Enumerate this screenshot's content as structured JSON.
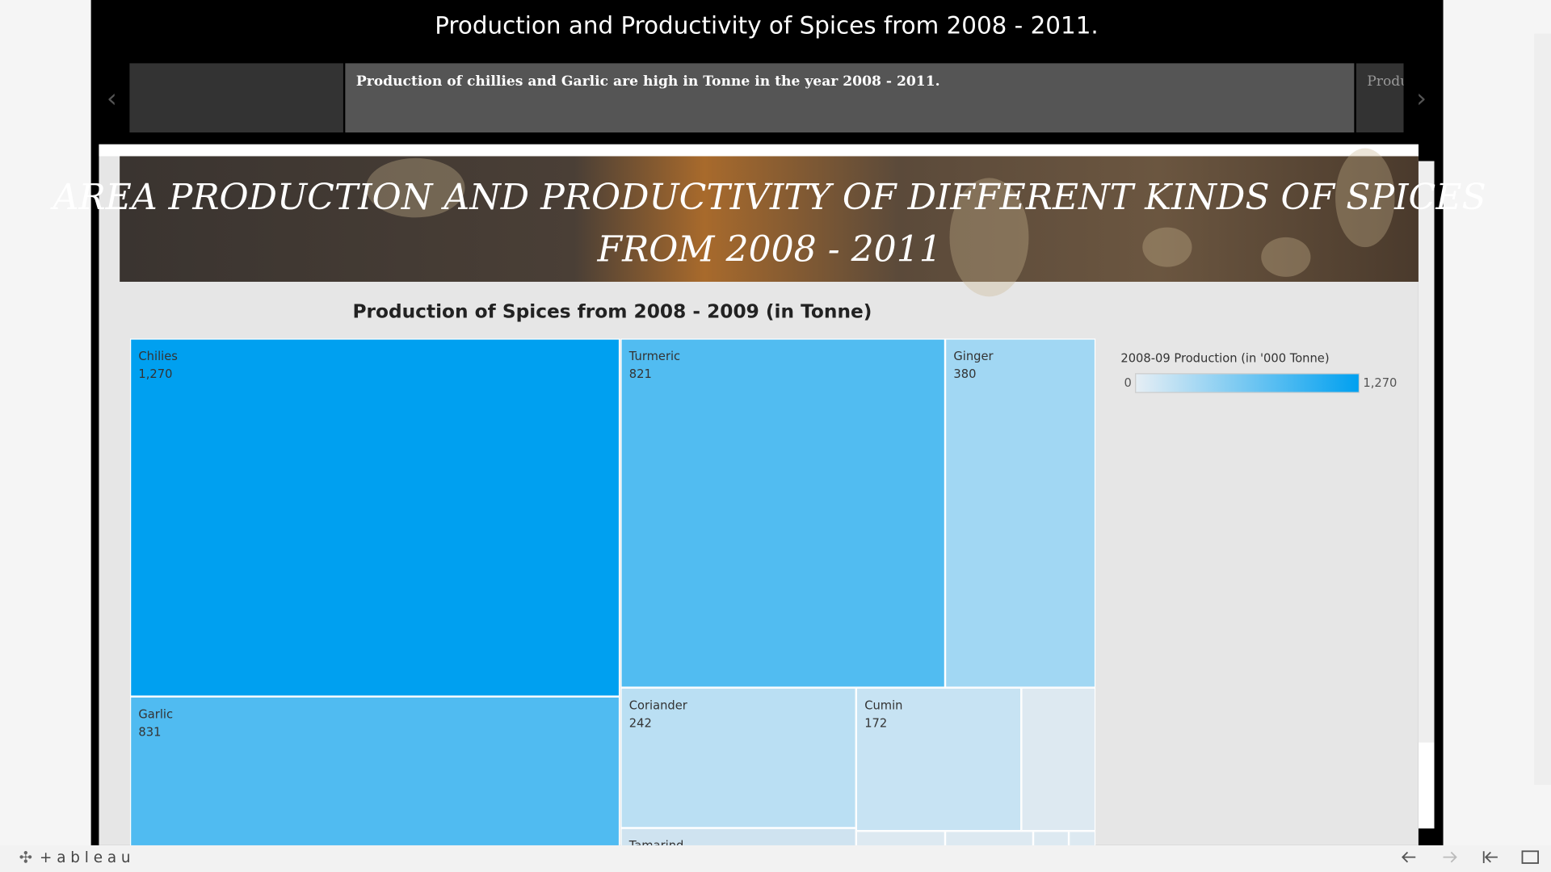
{
  "header": {
    "title": "Production and Productivity of Spices from 2008 - 2011."
  },
  "story": {
    "captions": [
      "Production of chillies and Garlic are high in Tonne in the year  2008 - 2011.",
      "Produ"
    ]
  },
  "banner": {
    "lines": [
      "AREA PRODUCTION AND PRODUCTIVITY OF DIFFERENT KINDS OF SPICES",
      "FROM 2008 - 2011"
    ]
  },
  "chart_data": {
    "type": "treemap",
    "title": "Production of Spices from 2008 - 2009 (in Tonne)",
    "categories": [
      "Chilies",
      "Garlic",
      "Turmeric",
      "Ginger",
      "Coriander",
      "Cumin",
      "Tamarind"
    ],
    "values": [
      1270,
      831,
      821,
      380,
      242,
      172,
      null
    ],
    "value_labels": [
      "1,270",
      "831",
      "821",
      "380",
      "242",
      "172",
      null
    ],
    "legend_title": "2008-09 Production (in  '000 Tonne)",
    "colorlim": [
      0,
      1270
    ],
    "colorticks": [
      0,
      {
        "value": 1270,
        "label": "1,270"
      }
    ],
    "colors": [
      "#e6eef4",
      "#00a0f0"
    ]
  },
  "footer": {
    "brand": "+ a b l e a u"
  }
}
